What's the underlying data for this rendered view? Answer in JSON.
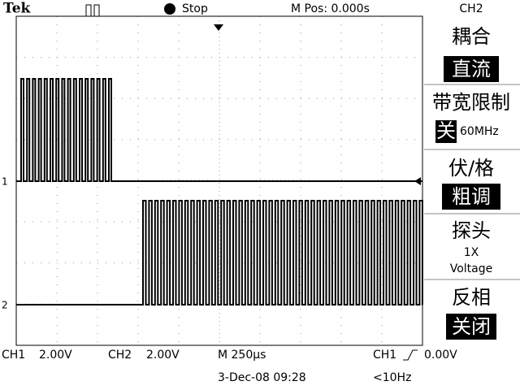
{
  "header": {
    "brand": "Tek",
    "status": "Stop",
    "position": "M Pos: 0.000s",
    "channel": "CH2"
  },
  "menu": [
    {
      "label": "耦合",
      "value": "直流"
    },
    {
      "label": "带宽限制",
      "value": "关",
      "extra": "60MHz"
    },
    {
      "label": "伏/格",
      "value": "粗调"
    },
    {
      "label": "探头",
      "value": "1X",
      "extra": "Voltage"
    },
    {
      "label": "反相",
      "value": "关闭"
    }
  ],
  "markers": [
    "1",
    "2"
  ],
  "footer": {
    "ch1": "CH1",
    "ch1_scale": "2.00V",
    "ch2": "CH2",
    "ch2_scale": "2.00V",
    "timebase": "M 250µs",
    "trigger": "CH1",
    "trigger_level": "0.00V",
    "date": "3-Dec-08 09:28",
    "frequency": "<10Hz"
  }
}
